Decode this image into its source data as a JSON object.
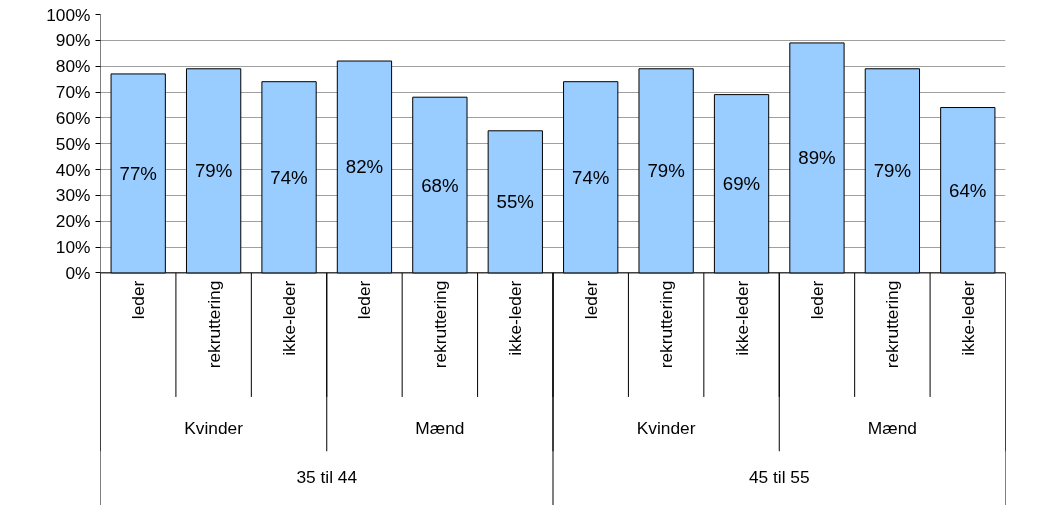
{
  "chart_data": {
    "type": "bar",
    "categories": [
      "leder",
      "rekruttering",
      "ikke-leder",
      "leder",
      "rekruttering",
      "ikke-leder",
      "leder",
      "rekruttering",
      "ikke-leder",
      "leder",
      "rekruttering",
      "ikke-leder"
    ],
    "values": [
      77,
      79,
      74,
      82,
      68,
      55,
      74,
      79,
      69,
      89,
      79,
      64
    ],
    "color": "#99ccff",
    "data_labels": true,
    "value_labels": [
      "77%",
      "79%",
      "74%",
      "82%",
      "68%",
      "55%",
      "74%",
      "79%",
      "69%",
      "89%",
      "79%",
      "64%"
    ],
    "ylim": [
      0,
      100
    ],
    "yticks": [
      {
        "value": 0,
        "label": "0%"
      },
      {
        "value": 10,
        "label": "10%"
      },
      {
        "value": 20,
        "label": "20%"
      },
      {
        "value": 30,
        "label": "30%"
      },
      {
        "value": 40,
        "label": "40%"
      },
      {
        "value": 50,
        "label": "50%"
      },
      {
        "value": 60,
        "label": "60%"
      },
      {
        "value": 70,
        "label": "70%"
      },
      {
        "value": 80,
        "label": "80%"
      },
      {
        "value": 90,
        "label": "90%"
      },
      {
        "value": 100,
        "label": "100%"
      }
    ],
    "grid": "y",
    "annotations": [
      "Kvinder",
      "Mænd",
      "Kvinder",
      "Mænd",
      "35 til 44",
      "45 til 55"
    ]
  }
}
